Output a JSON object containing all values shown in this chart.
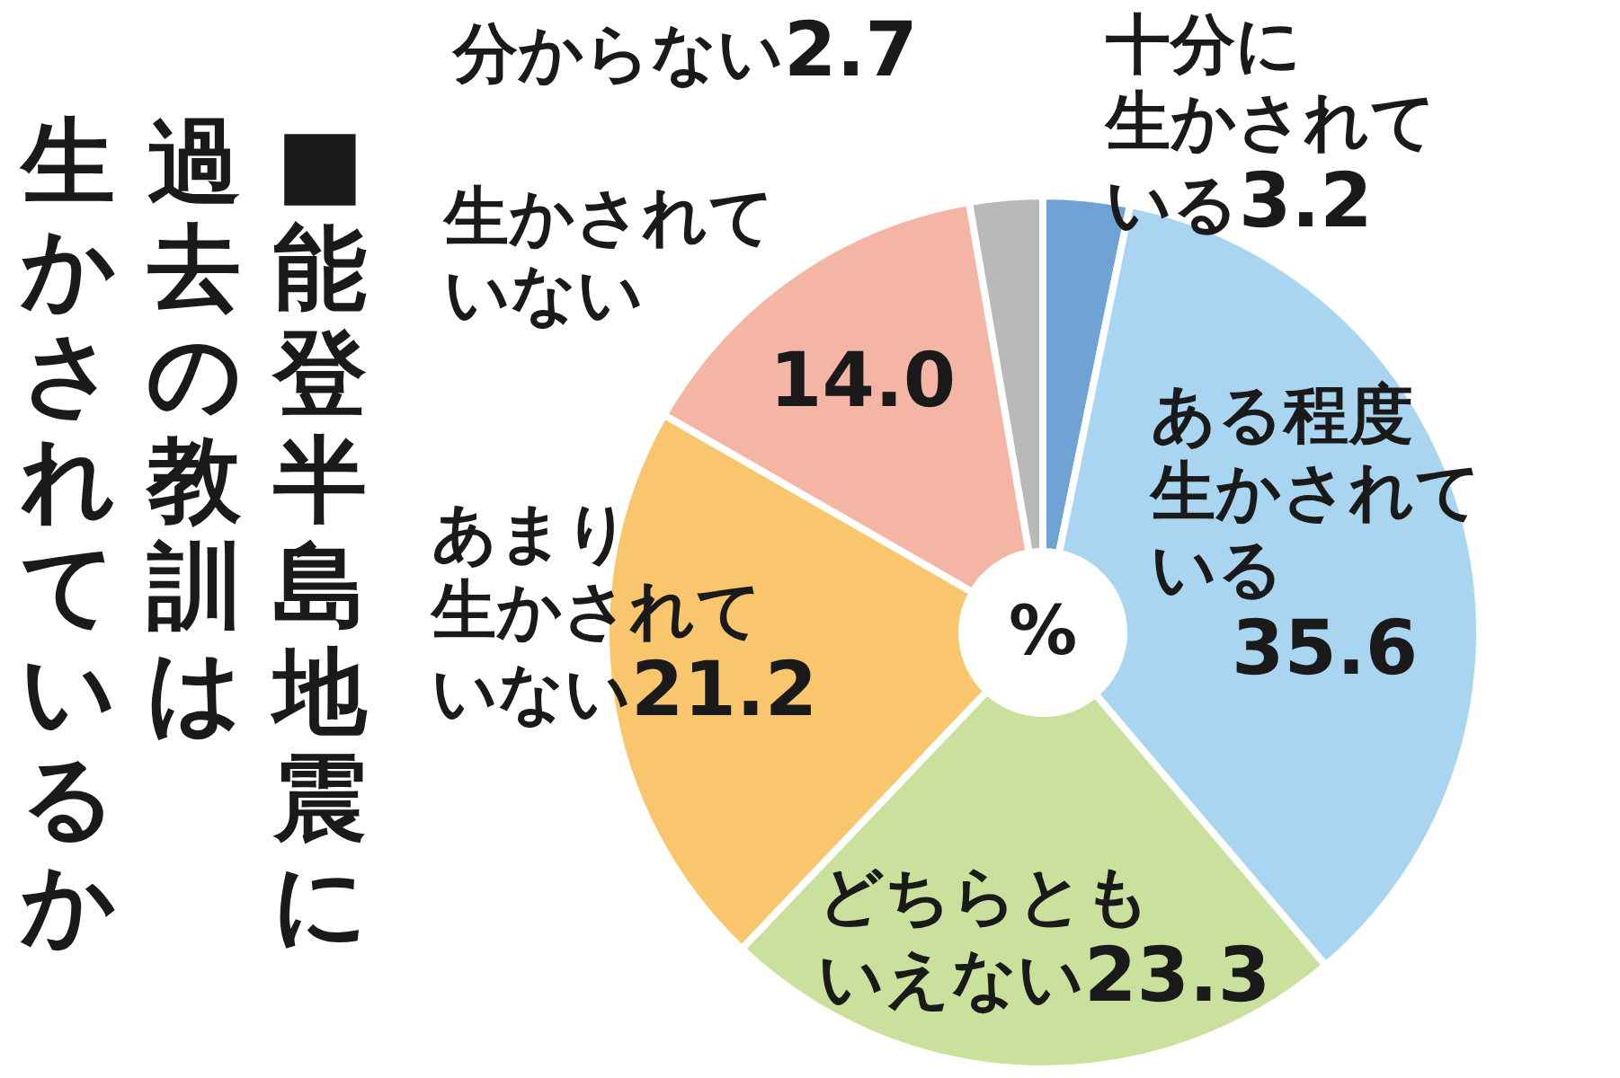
{
  "chart_data": {
    "type": "donut",
    "title": "■能登半島地震に過去の教訓は生かされているか",
    "categories": [
      "十分に生かされている",
      "ある程度生かされている",
      "どちらともいえない",
      "あまり生かされていない",
      "生かされていない",
      "分からない"
    ],
    "values": [
      3.2,
      35.6,
      23.3,
      21.2,
      14.0,
      2.7
    ],
    "value_labels": [
      "3.2",
      "35.6",
      "23.3",
      "21.2",
      "14.0",
      "2.7"
    ],
    "colors": [
      "#6fa3d6",
      "#a9d5f0",
      "#c9e19c",
      "#f9c66e",
      "#f5b5a5",
      "#b9b9b9"
    ],
    "annotations": [
      "%"
    ]
  }
}
